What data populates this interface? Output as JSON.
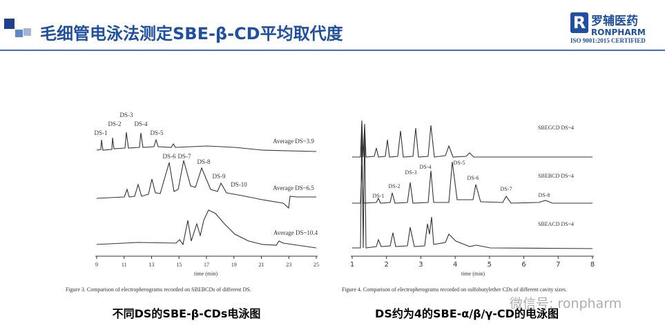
{
  "header": {
    "title": "毛细管电泳法测定SBE-β-CD平均取代度"
  },
  "logo": {
    "name": "罗辅医药",
    "brand": "RONPHARM",
    "cert": "ISO 9001:2015 CERTIFIED"
  },
  "figures": [
    {
      "labels": [
        "DS-1",
        "DS-2",
        "DS-3",
        "DS-4",
        "DS-5",
        "Average DS~3.9",
        "DS-6",
        "DS-7",
        "DS-8",
        "DS-9",
        "DS-10",
        "Average DS~6.5",
        "Average DS~10.4"
      ],
      "x_ticks": [
        9,
        11,
        13,
        15,
        17,
        19,
        21,
        23,
        25
      ],
      "x_axis_label": "time (min)",
      "caption": "Figure 3. Comparison of electropherograms recorded on SBEBCDs of different DS.",
      "subtitle": "不同DS的SBE-β-CDs电泳图"
    },
    {
      "labels": [
        "SBEGCD DS~4",
        "SBEBCD DS~4",
        "SBEACD DS~4",
        "DS-1",
        "DS-2",
        "DS-3",
        "DS-4",
        "DS-5",
        "DS-6",
        "DS-7",
        "DS-8"
      ],
      "x_ticks": [
        1,
        2,
        3,
        4,
        5,
        6,
        7,
        8
      ],
      "x_axis_label": "time (min)",
      "caption": "Figure 4. Comparison of electropherograms recorded on sulfobutylether CDs of different cavity sizes.",
      "subtitle": "DS约为4的SBE-α/β/γ-CD的电泳图"
    }
  ],
  "watermark": "微信号: ronpharm"
}
